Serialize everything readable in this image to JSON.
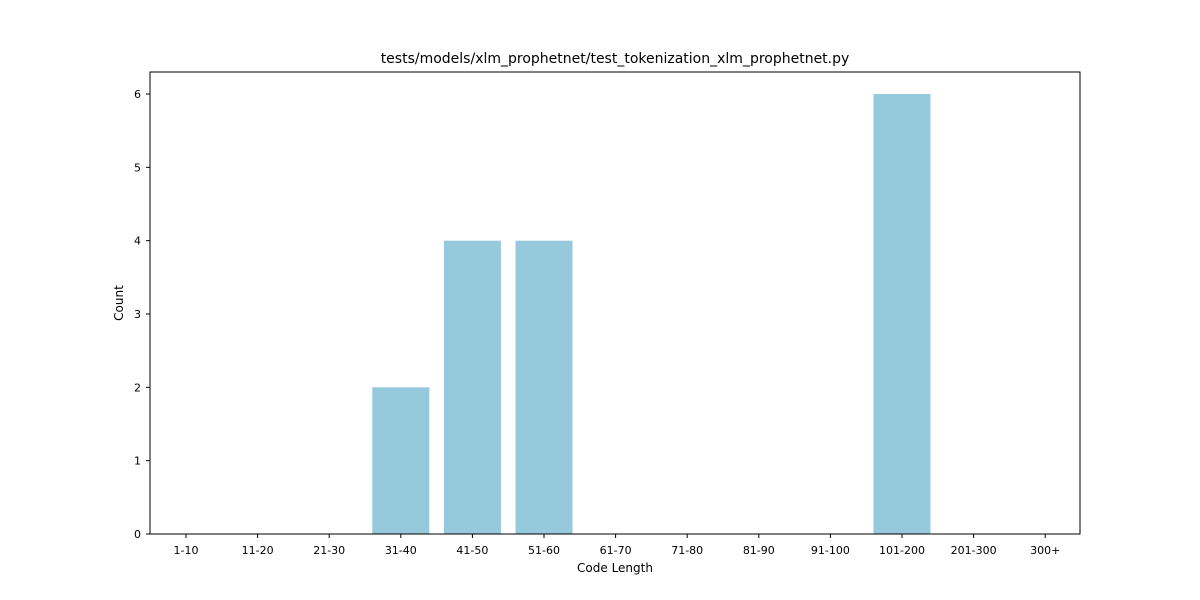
{
  "chart_data": {
    "type": "bar",
    "title": "tests/models/xlm_prophetnet/test_tokenization_xlm_prophetnet.py",
    "xlabel": "Code Length",
    "ylabel": "Count",
    "categories": [
      "1-10",
      "11-20",
      "21-30",
      "31-40",
      "41-50",
      "51-60",
      "61-70",
      "71-80",
      "81-90",
      "91-100",
      "101-200",
      "201-300",
      "300+"
    ],
    "values": [
      0,
      0,
      0,
      2,
      4,
      4,
      0,
      0,
      0,
      0,
      6,
      0,
      0
    ],
    "ylim": [
      0,
      6.3
    ],
    "yticks": [
      "0",
      "1",
      "2",
      "3",
      "4",
      "5",
      "6"
    ],
    "bar_color": "#96c9dc",
    "grid": false,
    "legend": "none"
  }
}
